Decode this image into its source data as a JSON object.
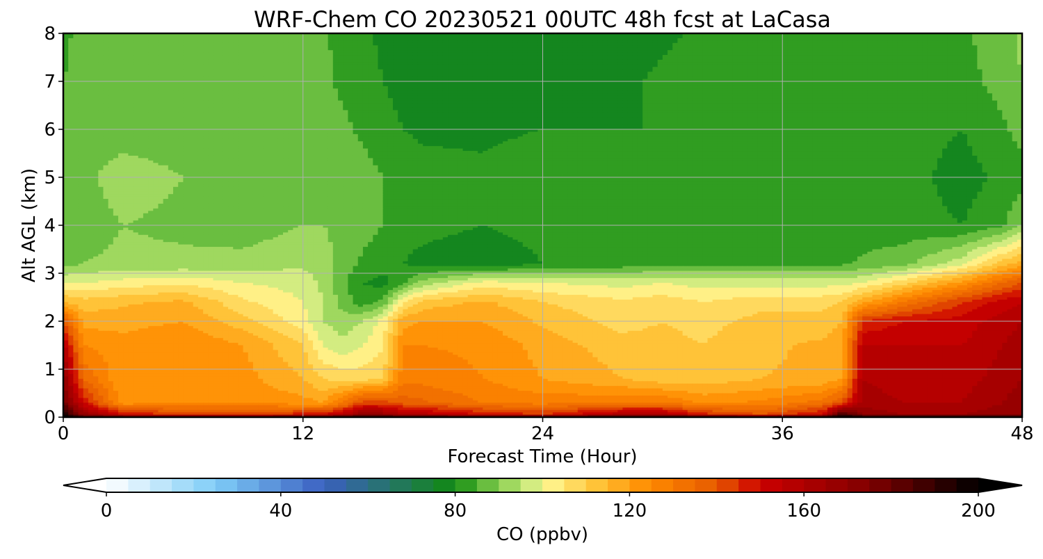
{
  "chart_data": {
    "type": "heatmap",
    "title": "WRF-Chem CO  20230521 00UTC 48h fcst at LaCasa",
    "xlabel": "Forecast Time (Hour)",
    "ylabel": "Alt AGL (km)",
    "xlim": [
      0,
      48
    ],
    "ylim": [
      0,
      8
    ],
    "x_ticks": [
      0,
      12,
      24,
      36,
      48
    ],
    "y_ticks": [
      0,
      1,
      2,
      3,
      4,
      5,
      6,
      7,
      8
    ],
    "grid": true,
    "colorbar": {
      "label": "CO  (ppbv)",
      "range": [
        0,
        200
      ],
      "ticks": [
        0,
        40,
        80,
        120,
        160,
        200
      ],
      "extend": "both",
      "levels": [
        0,
        5,
        10,
        15,
        20,
        25,
        30,
        35,
        40,
        45,
        50,
        55,
        60,
        65,
        70,
        75,
        80,
        85,
        90,
        95,
        100,
        105,
        110,
        115,
        120,
        125,
        130,
        135,
        140,
        145,
        150,
        155,
        160,
        165,
        170,
        175,
        180,
        185,
        190,
        195,
        200
      ]
    },
    "x": [
      0,
      1,
      3,
      6,
      9,
      12,
      13,
      14,
      15,
      16,
      17,
      18,
      21,
      24,
      28,
      30,
      32,
      35,
      38,
      39,
      40,
      42,
      45,
      47,
      48
    ],
    "y": [
      0,
      0.05,
      0.3,
      0.8,
      1.5,
      2.0,
      2.4,
      2.8,
      3.2,
      4.0,
      5.0,
      6.0,
      7.0,
      8.0
    ],
    "z": [
      [
        198,
        190,
        190,
        190,
        192,
        195,
        196,
        197,
        197,
        196,
        196,
        196,
        195,
        196,
        197,
        198,
        197,
        196,
        198,
        200,
        200,
        200,
        200,
        200,
        200
      ],
      [
        198,
        168,
        150,
        145,
        145,
        148,
        150,
        158,
        170,
        168,
        160,
        158,
        150,
        145,
        160,
        160,
        148,
        140,
        152,
        190,
        170,
        165,
        165,
        168,
        170
      ],
      [
        178,
        150,
        122,
        124,
        124,
        122,
        120,
        130,
        142,
        142,
        138,
        136,
        130,
        128,
        130,
        130,
        124,
        126,
        132,
        140,
        162,
        160,
        160,
        165,
        168
      ],
      [
        170,
        135,
        120,
        122,
        122,
        115,
        110,
        108,
        108,
        110,
        128,
        128,
        125,
        120,
        115,
        112,
        112,
        115,
        116,
        120,
        160,
        158,
        158,
        162,
        165
      ],
      [
        158,
        125,
        122,
        125,
        120,
        110,
        100,
        96,
        100,
        104,
        125,
        125,
        124,
        118,
        112,
        112,
        110,
        114,
        116,
        118,
        155,
        155,
        155,
        160,
        162
      ],
      [
        140,
        118,
        118,
        120,
        112,
        102,
        95,
        92,
        95,
        102,
        118,
        120,
        120,
        114,
        108,
        110,
        108,
        112,
        112,
        115,
        145,
        150,
        152,
        158,
        160
      ],
      [
        115,
        112,
        114,
        116,
        106,
        100,
        95,
        88,
        82,
        86,
        104,
        112,
        116,
        110,
        106,
        108,
        105,
        108,
        108,
        110,
        118,
        130,
        145,
        152,
        155
      ],
      [
        100,
        100,
        102,
        104,
        100,
        98,
        94,
        86,
        80,
        78,
        84,
        92,
        102,
        100,
        98,
        100,
        98,
        98,
        98,
        98,
        100,
        108,
        122,
        135,
        140
      ],
      [
        88,
        90,
        91,
        91,
        92,
        94,
        92,
        88,
        84,
        82,
        80,
        78,
        76,
        80,
        82,
        84,
        84,
        84,
        84,
        84,
        86,
        88,
        98,
        112,
        118
      ],
      [
        87,
        88,
        90,
        89,
        87,
        90,
        90,
        89,
        87,
        85,
        83,
        82,
        80,
        82,
        80,
        81,
        82,
        82,
        82,
        82,
        82,
        82,
        80,
        84,
        90
      ],
      [
        87,
        89,
        92,
        90,
        88,
        88,
        89,
        88,
        87,
        85,
        83,
        82,
        81,
        83,
        82,
        82,
        80,
        82,
        84,
        84,
        82,
        82,
        78,
        81,
        83
      ],
      [
        86,
        88,
        88,
        88,
        88,
        87,
        87,
        86,
        84,
        82,
        80,
        79,
        79,
        80,
        80,
        80,
        82,
        84,
        85,
        84,
        82,
        82,
        80,
        84,
        87
      ],
      [
        85,
        88,
        88,
        88,
        87,
        87,
        86,
        84,
        82,
        80,
        78,
        77,
        78,
        79,
        79,
        81,
        82,
        84,
        84,
        82,
        81,
        82,
        83,
        87,
        90
      ],
      [
        83,
        88,
        90,
        88,
        87,
        87,
        86,
        83,
        81,
        79,
        77,
        76,
        77,
        77,
        77,
        79,
        81,
        83,
        83,
        82,
        81,
        82,
        84,
        88,
        91
      ]
    ]
  },
  "colors": {
    "grid": "#b0b0b0",
    "axis": "#000000",
    "stops": [
      [
        0,
        "#ffffff"
      ],
      [
        25,
        "#7fcdf7"
      ],
      [
        50,
        "#3a5fc0"
      ],
      [
        80,
        "#108a10"
      ],
      [
        85,
        "#4fb031"
      ],
      [
        92,
        "#9ad65c"
      ],
      [
        98,
        "#d8ee84"
      ],
      [
        102,
        "#fff28a"
      ],
      [
        112,
        "#ffc53a"
      ],
      [
        124,
        "#ff8c00"
      ],
      [
        140,
        "#e65a00"
      ],
      [
        150,
        "#cc0000"
      ],
      [
        175,
        "#800000"
      ],
      [
        200,
        "#000000"
      ]
    ]
  }
}
